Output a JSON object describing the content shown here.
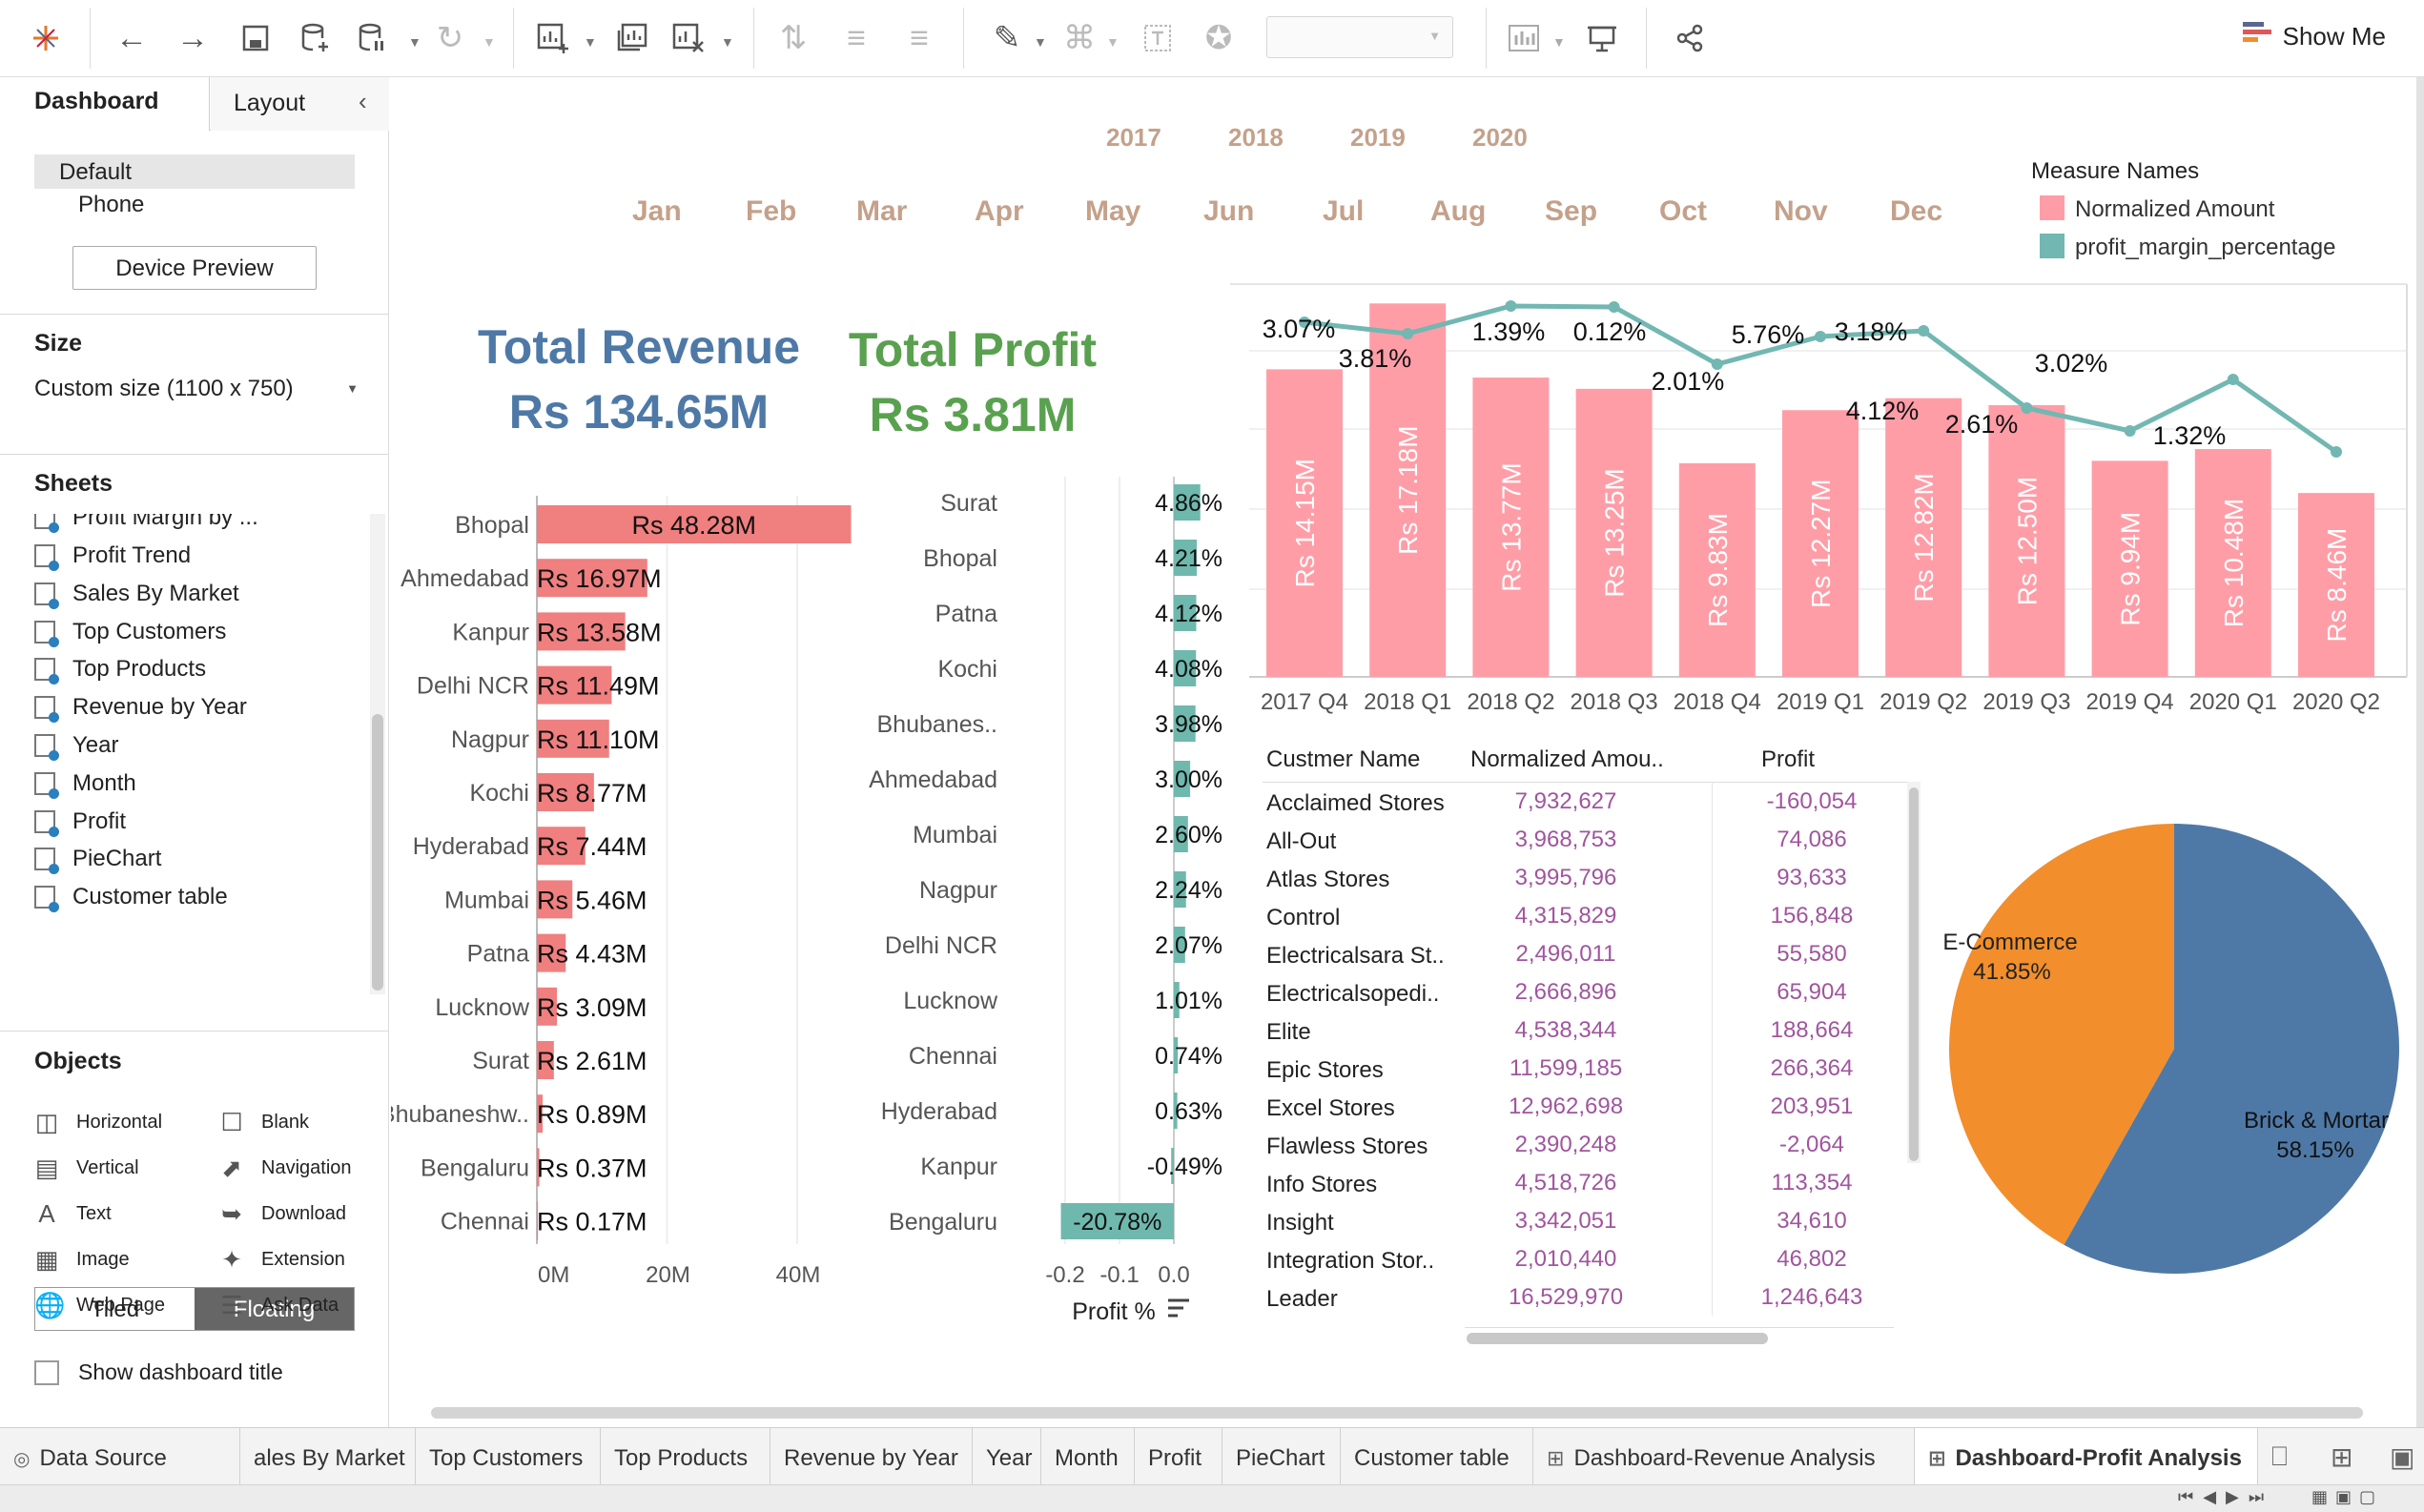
{
  "toolbar": {
    "show_me_label": "Show Me",
    "icons": [
      "tableau-logo-icon",
      "back-icon",
      "forward-icon",
      "save-icon",
      "new-data-source-icon",
      "pause-updates-icon",
      "refresh-icon",
      "new-worksheet-icon",
      "duplicate-sheet-icon",
      "clear-sheet-icon",
      "swap-icon",
      "sort-ascending-icon",
      "sort-descending-icon",
      "highlight-icon",
      "annotate-icon",
      "text-label-icon",
      "pin-icon",
      "fit-dropdown",
      "chart-type-icon",
      "presentation-icon",
      "share-icon"
    ]
  },
  "sidebar": {
    "tab_dashboard": "Dashboard",
    "tab_layout": "Layout",
    "device_default": "Default",
    "device_phone": "Phone",
    "device_preview_btn": "Device Preview",
    "size_title": "Size",
    "size_value": "Custom size (1100 x 750)",
    "sheets_title": "Sheets",
    "sheets_partial": "Profit Margin by ...",
    "sheets": [
      "Profit Trend",
      "Sales By Market",
      "Top Customers",
      "Top Products",
      "Revenue by Year",
      "Year",
      "Month",
      "Profit",
      "PieChart",
      "Customer table"
    ],
    "objects_title": "Objects",
    "objects": [
      {
        "label": "Horizontal",
        "icon": "horizontal-container-icon"
      },
      {
        "label": "Blank",
        "icon": "blank-icon"
      },
      {
        "label": "Vertical",
        "icon": "vertical-container-icon"
      },
      {
        "label": "Navigation",
        "icon": "navigation-icon"
      },
      {
        "label": "Text",
        "icon": "text-icon"
      },
      {
        "label": "Download",
        "icon": "download-icon"
      },
      {
        "label": "Image",
        "icon": "image-icon"
      },
      {
        "label": "Extension",
        "icon": "extension-icon"
      },
      {
        "label": "Web Page",
        "icon": "web-page-icon"
      },
      {
        "label": "Ask Data",
        "icon": "ask-data-icon"
      }
    ],
    "tiled_label": "Tiled",
    "floating_label": "Floating",
    "show_title_label": "Show dashboard title"
  },
  "filters": {
    "years": [
      "2017",
      "2018",
      "2019",
      "2020"
    ],
    "months": [
      "Jan",
      "Feb",
      "Mar",
      "Apr",
      "May",
      "Jun",
      "Jul",
      "Aug",
      "Sep",
      "Oct",
      "Nov",
      "Dec"
    ]
  },
  "kpis": {
    "revenue_title": "Total Revenue",
    "revenue_value": "Rs 134.65M",
    "profit_title": "Total Profit",
    "profit_value": "Rs 3.81M",
    "revenue_color": "#4e79a7",
    "profit_color": "#59a14f"
  },
  "chart_data": [
    {
      "type": "bar",
      "title": "",
      "orientation": "horizontal",
      "categories": [
        "Bhopal",
        "Ahmedabad",
        "Kanpur",
        "Delhi NCR",
        "Nagpur",
        "Kochi",
        "Hyderabad",
        "Mumbai",
        "Patna",
        "Lucknow",
        "Surat",
        "Bhubaneshw..",
        "Bengaluru",
        "Chennai"
      ],
      "values": [
        48.28,
        16.97,
        13.58,
        11.49,
        11.1,
        8.77,
        7.44,
        5.46,
        4.43,
        3.09,
        2.61,
        0.89,
        0.37,
        0.17
      ],
      "value_labels": [
        "Rs 48.28M",
        "Rs 16.97M",
        "Rs 13.58M",
        "Rs 11.49M",
        "Rs 11.10M",
        "Rs 8.77M",
        "Rs 7.44M",
        "Rs 5.46M",
        "Rs 4.43M",
        "Rs 3.09M",
        "Rs 2.61M",
        "Rs 0.89M",
        "Rs 0.37M",
        "Rs 0.17M"
      ],
      "xlim": [
        0,
        50
      ],
      "xticks": [
        "0M",
        "20M",
        "40M"
      ],
      "color": "#f07f7f",
      "highlight_color": "#f07f7f"
    },
    {
      "type": "bar",
      "title": "",
      "orientation": "horizontal",
      "xlabel": "Profit %",
      "categories": [
        "Surat",
        "Bhopal",
        "Patna",
        "Kochi",
        "Bhubanes..",
        "Ahmedabad",
        "Mumbai",
        "Nagpur",
        "Delhi NCR",
        "Lucknow",
        "Chennai",
        "Hyderabad",
        "Kanpur",
        "Bengaluru"
      ],
      "values": [
        4.86,
        4.21,
        4.12,
        4.08,
        3.98,
        3.0,
        2.6,
        2.24,
        2.07,
        1.01,
        0.74,
        0.63,
        -0.49,
        -20.78
      ],
      "value_labels": [
        "4.86%",
        "4.21%",
        "4.12%",
        "4.08%",
        "3.98%",
        "3.00%",
        "2.60%",
        "2.24%",
        "2.07%",
        "1.01%",
        "0.74%",
        "0.63%",
        "-0.49%",
        "-20.78%"
      ],
      "xlim": [
        -0.22,
        0.05
      ],
      "xticks": [
        "-0.2",
        "-0.1",
        "0.0"
      ],
      "color": "#6fb8ad"
    },
    {
      "type": "bar",
      "title": "",
      "legend_title": "Measure Names",
      "legend_placement": "top-right",
      "categories": [
        "2017 Q4",
        "2018 Q1",
        "2018 Q2",
        "2018 Q3",
        "2018 Q4",
        "2019 Q1",
        "2019 Q2",
        "2019 Q3",
        "2019 Q4",
        "2020 Q1",
        "2020 Q2"
      ],
      "series": [
        {
          "name": "Normalized Amount",
          "type": "bar",
          "values": [
            14.15,
            17.18,
            13.77,
            13.25,
            9.83,
            12.27,
            12.82,
            12.5,
            9.94,
            10.48,
            8.46
          ],
          "labels": [
            "Rs 14.15M",
            "Rs 17.18M",
            "Rs 13.77M",
            "Rs 13.25M",
            "Rs 9.83M",
            "Rs 12.27M",
            "Rs 12.82M",
            "Rs 12.50M",
            "Rs 9.94M",
            "Rs 10.48M",
            "Rs 8.46M"
          ],
          "color": "#ff9da7"
        },
        {
          "name": "profit_margin_percentage",
          "type": "line",
          "values": [
            3.07,
            3.81,
            1.39,
            0.12,
            2.01,
            5.76,
            3.18,
            4.12,
            2.61,
            3.02,
            1.32
          ],
          "labels": [
            "3.07%",
            "3.81%",
            "1.39%",
            "0.12%",
            "2.01%",
            "5.76%",
            "3.18%",
            "4.12%",
            "2.61%",
            "3.02%",
            "1.32%"
          ],
          "color": "#72b7b2"
        }
      ],
      "ylim": [
        0,
        18
      ]
    },
    {
      "type": "table",
      "columns": [
        "Custmer Name",
        "Normalized Amou..",
        "Profit"
      ],
      "rows": [
        [
          "Acclaimed Stores",
          "7,932,627",
          "-160,054"
        ],
        [
          "All-Out",
          "3,968,753",
          "74,086"
        ],
        [
          "Atlas Stores",
          "3,995,796",
          "93,633"
        ],
        [
          "Control",
          "4,315,829",
          "156,848"
        ],
        [
          "Electricalsara St..",
          "2,496,011",
          "55,580"
        ],
        [
          "Electricalsopedi..",
          "2,666,896",
          "65,904"
        ],
        [
          "Elite",
          "4,538,344",
          "188,664"
        ],
        [
          "Epic Stores",
          "11,599,185",
          "266,364"
        ],
        [
          "Excel Stores",
          "12,962,698",
          "203,951"
        ],
        [
          "Flawless Stores",
          "2,390,248",
          "-2,064"
        ],
        [
          "Info Stores",
          "4,518,726",
          "113,354"
        ],
        [
          "Insight",
          "3,342,051",
          "34,610"
        ],
        [
          "Integration Stor..",
          "2,010,440",
          "46,802"
        ],
        [
          "Leader",
          "16,529,970",
          "1,246,643"
        ]
      ],
      "value_color": "#a0559e"
    },
    {
      "type": "pie",
      "categories": [
        "E-Commerce",
        "Brick & Mortar"
      ],
      "values": [
        41.85,
        58.15
      ],
      "labels": [
        "41.85%",
        "58.15%"
      ],
      "colors": [
        "#f28e2b",
        "#4e79a7"
      ]
    }
  ],
  "bottom_tabs": [
    "Data Source",
    "ales By Market",
    "Top Customers",
    "Top Products",
    "Revenue by Year",
    "Year",
    "Month",
    "Profit",
    "PieChart",
    "Customer table",
    "Dashboard-Revenue Analysis",
    "Dashboard-Profit Analysis"
  ],
  "active_tab": "Dashboard-Profit Analysis"
}
